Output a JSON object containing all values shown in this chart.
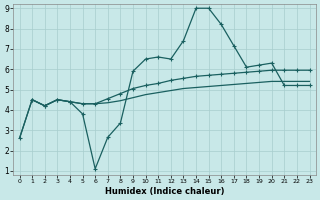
{
  "xlabel": "Humidex (Indice chaleur)",
  "background_color": "#c8e8e8",
  "grid_color": "#a8cece",
  "line_color": "#1a6060",
  "xlim": [
    -0.5,
    23.5
  ],
  "ylim": [
    0.8,
    9.2
  ],
  "xticks": [
    0,
    1,
    2,
    3,
    4,
    5,
    6,
    7,
    8,
    9,
    10,
    11,
    12,
    13,
    14,
    15,
    16,
    17,
    18,
    19,
    20,
    21,
    22,
    23
  ],
  "yticks": [
    1,
    2,
    3,
    4,
    5,
    6,
    7,
    8,
    9
  ],
  "line1_x": [
    1,
    2,
    3,
    4,
    5,
    6,
    7,
    8,
    9,
    10,
    11,
    12,
    13,
    14,
    15,
    16,
    17,
    18,
    19,
    20,
    21,
    22,
    23
  ],
  "line1_y": [
    4.5,
    4.2,
    4.5,
    4.4,
    3.8,
    1.1,
    2.65,
    3.35,
    5.9,
    6.5,
    6.6,
    6.5,
    7.4,
    9.0,
    9.0,
    8.2,
    7.15,
    6.1,
    6.2,
    6.3,
    5.2,
    5.2,
    5.2
  ],
  "line2_x": [
    0,
    1,
    2,
    3,
    4,
    5,
    6,
    7,
    8,
    9,
    10,
    11,
    12,
    13,
    14,
    15,
    16,
    17,
    18,
    19,
    20,
    21,
    22,
    23
  ],
  "line2_y": [
    2.6,
    4.5,
    4.2,
    4.5,
    4.4,
    4.3,
    4.3,
    4.35,
    4.45,
    4.6,
    4.75,
    4.85,
    4.95,
    5.05,
    5.1,
    5.15,
    5.2,
    5.25,
    5.3,
    5.35,
    5.4,
    5.4,
    5.4,
    5.4
  ],
  "line3_x": [
    0,
    1,
    2,
    3,
    4,
    5,
    6,
    7,
    8,
    9,
    10,
    11,
    12,
    13,
    14,
    15,
    16,
    17,
    18,
    19,
    20,
    21,
    22,
    23
  ],
  "line3_y": [
    2.6,
    4.5,
    4.2,
    4.5,
    4.4,
    4.3,
    4.3,
    4.55,
    4.8,
    5.05,
    5.2,
    5.3,
    5.45,
    5.55,
    5.65,
    5.7,
    5.75,
    5.8,
    5.85,
    5.9,
    5.95,
    5.95,
    5.95,
    5.95
  ]
}
